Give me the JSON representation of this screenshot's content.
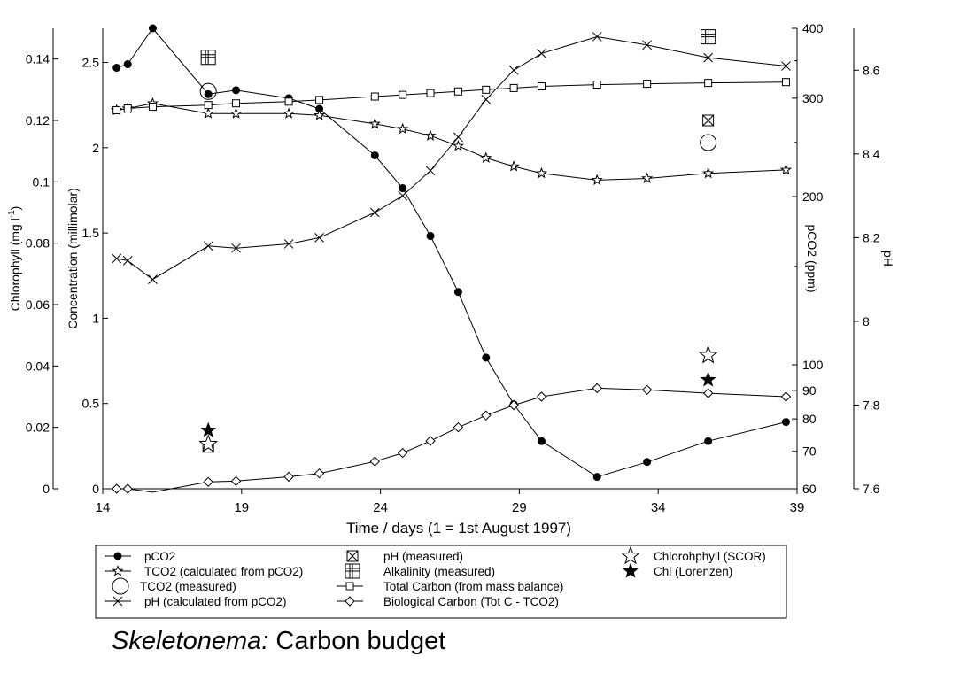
{
  "chart_data": {
    "type": "line",
    "title": "",
    "caption": {
      "italic": "Skeletonema:",
      "rest": " Carbon budget"
    },
    "xlabel": "Time / days (1 = 1st August 1997)",
    "xlim": [
      14,
      39
    ],
    "xticks": [
      "14",
      "19",
      "24",
      "29",
      "34",
      "39"
    ],
    "axes": {
      "chlorophyll": {
        "label_text": "Chlorophyll (mg l",
        "label_sup": "-1",
        "label_close": ")",
        "range": [
          0,
          0.15
        ],
        "ticks": [
          "0",
          "0.02",
          "0.04",
          "0.06",
          "0.08",
          "0.1",
          "0.12",
          "0.14"
        ]
      },
      "concentration": {
        "label": "Concentration (millimolar)",
        "range": [
          0,
          2.7
        ],
        "ticks": [
          "0",
          "0.5",
          "1",
          "1.5",
          "2",
          "2.5"
        ]
      },
      "pco2": {
        "label": "pCO2 (ppm)",
        "scale": "log",
        "range": [
          60,
          400
        ],
        "ticks": [
          "60",
          "70",
          "80",
          "90",
          "100",
          "200",
          "300",
          "400"
        ]
      },
      "ph": {
        "label": "pH",
        "range": [
          7.6,
          8.7
        ],
        "ticks": [
          "7.6",
          "7.8",
          "8",
          "8.2",
          "8.4",
          "8.6"
        ]
      }
    },
    "series": [
      {
        "name": "pCO2",
        "axis": "pco2",
        "marker": "filled-circle",
        "line": true,
        "x": [
          14.5,
          14.9,
          15.8,
          17.8,
          18.8,
          20.7,
          21.8,
          23.8,
          24.8,
          25.8,
          26.8,
          27.8,
          28.8,
          29.8,
          31.8,
          33.6,
          35.8,
          38.6
        ],
        "y": [
          340,
          345,
          400,
          305,
          310,
          300,
          287,
          237,
          207,
          170,
          135,
          103,
          85,
          73,
          63,
          67,
          73,
          79
        ]
      },
      {
        "name": "TCO2 (calculated from pCO2)",
        "axis": "concentration",
        "marker": "star-open",
        "line": true,
        "x": [
          14.5,
          14.9,
          15.8,
          17.8,
          18.8,
          20.7,
          21.8,
          23.8,
          24.8,
          25.8,
          26.8,
          27.8,
          28.8,
          29.8,
          31.8,
          33.6,
          35.8,
          38.6
        ],
        "y": [
          2.22,
          2.23,
          2.26,
          2.2,
          2.2,
          2.2,
          2.19,
          2.14,
          2.11,
          2.07,
          2.01,
          1.94,
          1.89,
          1.85,
          1.81,
          1.82,
          1.85,
          1.87
        ]
      },
      {
        "name": "TCO2 (measured)",
        "axis": "concentration",
        "marker": "large-circle",
        "line": false,
        "x": [
          17.8,
          35.8
        ],
        "y": [
          2.33,
          2.03
        ]
      },
      {
        "name": "pH (calculated from pCO2)",
        "axis": "ph",
        "marker": "x",
        "line": true,
        "x": [
          14.5,
          14.9,
          15.8,
          17.8,
          18.8,
          20.7,
          21.8,
          23.8,
          24.8,
          25.8,
          26.8,
          27.8,
          28.8,
          29.8,
          31.8,
          33.6,
          35.8,
          38.6
        ],
        "y": [
          8.15,
          8.145,
          8.1,
          8.18,
          8.175,
          8.185,
          8.2,
          8.26,
          8.3,
          8.36,
          8.44,
          8.53,
          8.6,
          8.64,
          8.68,
          8.66,
          8.63,
          8.61
        ]
      },
      {
        "name": "pH (measured)",
        "axis": "ph",
        "marker": "boxed-x",
        "line": false,
        "x": [
          17.8,
          35.8
        ],
        "y": [
          7.7,
          8.48
        ]
      },
      {
        "name": "Alkalinity (measured)",
        "axis": "concentration",
        "marker": "boxed-plus",
        "line": false,
        "x": [
          17.8,
          35.8
        ],
        "y": [
          2.53,
          2.65
        ]
      },
      {
        "name": "Total Carbon (from mass balance)",
        "axis": "concentration",
        "marker": "small-square",
        "line": true,
        "x": [
          14.5,
          14.9,
          15.8,
          17.8,
          18.8,
          20.7,
          21.8,
          23.8,
          24.8,
          25.8,
          26.8,
          27.8,
          28.8,
          29.8,
          31.8,
          33.6,
          35.8,
          38.6
        ],
        "y": [
          2.22,
          2.23,
          2.24,
          2.25,
          2.26,
          2.27,
          2.28,
          2.3,
          2.31,
          2.32,
          2.33,
          2.34,
          2.35,
          2.36,
          2.37,
          2.375,
          2.38,
          2.385
        ]
      },
      {
        "name": "Biological Carbon (Tot C - TCO2)",
        "axis": "concentration",
        "marker": "diamond",
        "line": true,
        "x": [
          14.5,
          14.9,
          15.8,
          17.8,
          18.8,
          20.7,
          21.8,
          23.8,
          24.8,
          25.8,
          26.8,
          27.8,
          28.8,
          29.8,
          31.8,
          33.6,
          35.8,
          38.6
        ],
        "y": [
          0,
          0,
          -0.02,
          0.04,
          0.045,
          0.07,
          0.09,
          0.16,
          0.21,
          0.28,
          0.36,
          0.43,
          0.49,
          0.54,
          0.59,
          0.58,
          0.56,
          0.54
        ]
      },
      {
        "name": "Chlorohphyll (SCOR)",
        "axis": "chlorophyll",
        "marker": "star-open-large",
        "line": false,
        "x": [
          17.8,
          35.8
        ],
        "y": [
          0.0145,
          0.0435
        ]
      },
      {
        "name": "Chl (Lorenzen)",
        "axis": "chlorophyll",
        "marker": "star-filled",
        "line": false,
        "x": [
          17.8,
          35.8
        ],
        "y": [
          0.019,
          0.0355
        ]
      }
    ],
    "legend": {
      "placement": "bottom",
      "columns": [
        [
          "pCO2",
          "TCO2 (calculated from pCO2)",
          "TCO2 (measured)",
          "pH (calculated from pCO2)"
        ],
        [
          "pH (measured)",
          "Alkalinity (measured)",
          "Total Carbon (from mass balance)",
          "Biological Carbon (Tot C - TCO2)"
        ],
        [
          "Chlorohphyll (SCOR)",
          "Chl (Lorenzen)"
        ]
      ]
    },
    "grid": false
  }
}
